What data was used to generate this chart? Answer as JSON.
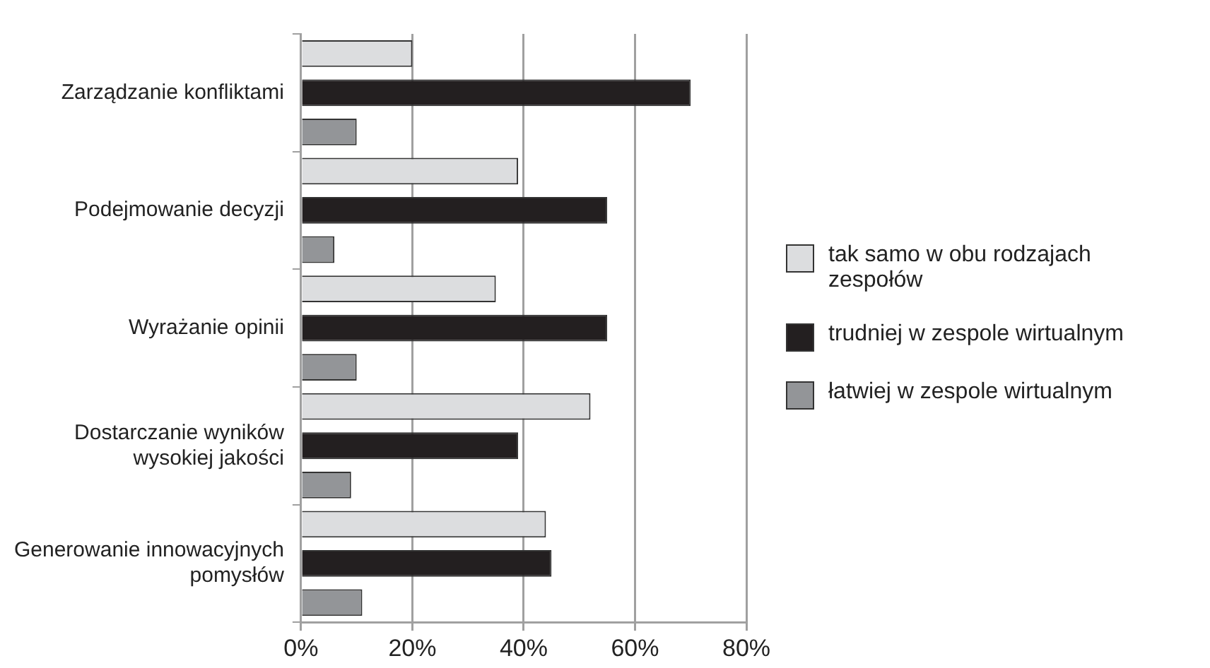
{
  "chart_data": {
    "type": "bar",
    "orientation": "horizontal",
    "categories": [
      "Zarządzanie konfliktami",
      "Podejmowanie decyzji",
      "Wyrażanie opinii",
      "Dostarczanie wyników wysokiej jakości",
      "Generowanie innowacyjnych pomysłów"
    ],
    "series": [
      {
        "name": "tak samo w obu rodzajach zespołów",
        "color": "#dcdddf",
        "values": [
          20,
          39,
          35,
          52,
          44
        ]
      },
      {
        "name": "trudniej w zespole wirtualnym",
        "color": "#231f20",
        "values": [
          70,
          55,
          55,
          39,
          45
        ]
      },
      {
        "name": "łatwiej w zespole wirtualnym",
        "color": "#939598",
        "values": [
          10,
          6,
          10,
          9,
          11
        ]
      }
    ],
    "xlim": [
      0,
      80
    ],
    "xticks": [
      {
        "value": 0,
        "label": "0%"
      },
      {
        "value": 20,
        "label": "20%"
      },
      {
        "value": 40,
        "label": "40%"
      },
      {
        "value": 60,
        "label": "60%"
      },
      {
        "value": 80,
        "label": "80%"
      }
    ],
    "grid": "x",
    "legend": "right"
  }
}
